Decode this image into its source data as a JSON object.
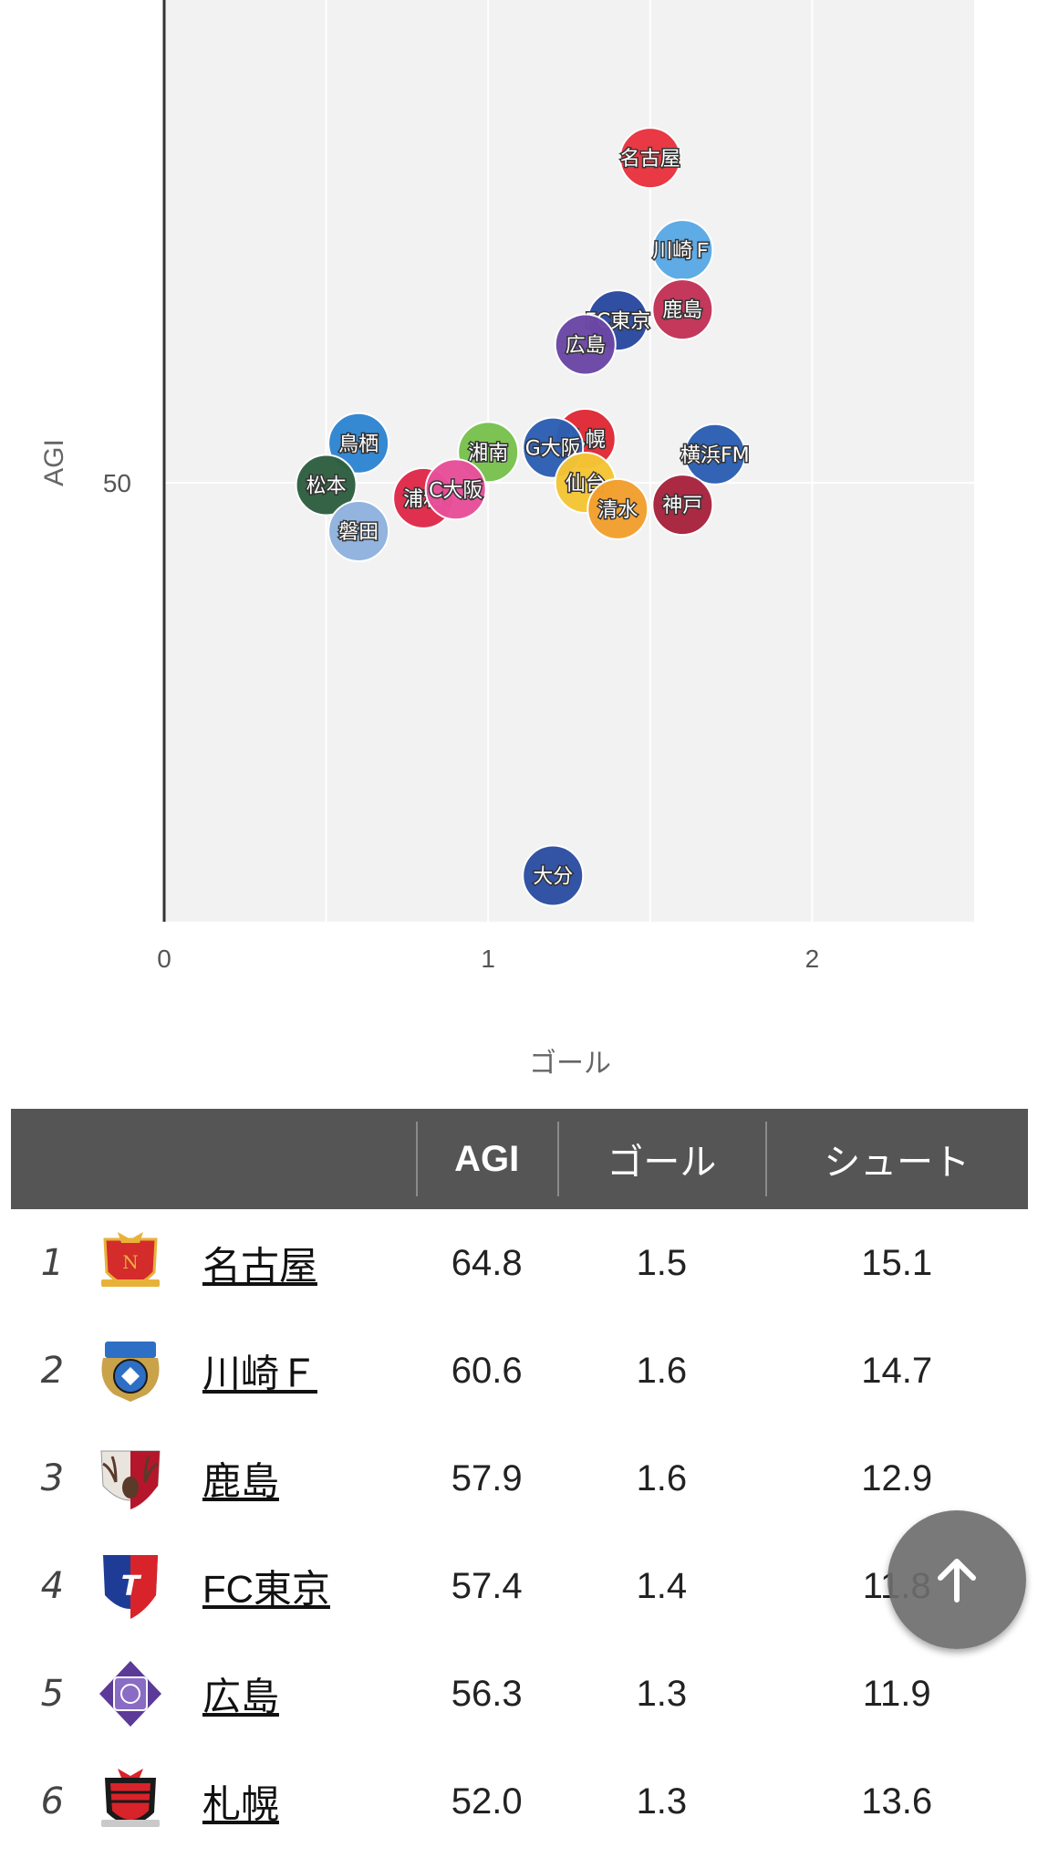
{
  "chart_data": {
    "type": "scatter",
    "xlabel": "ゴール",
    "ylabel": "AGI",
    "xlim": [
      0,
      2.5
    ],
    "ylim": [
      30,
      72
    ],
    "x_ticks": [
      "0",
      "1",
      "2"
    ],
    "x_tick_values": [
      0,
      1,
      2
    ],
    "y_ticks": [
      "50"
    ],
    "y_tick_values": [
      50
    ],
    "grid": true,
    "points": [
      {
        "label": "名古屋",
        "x": 1.5,
        "y": 64.8,
        "color": "#e8343f"
      },
      {
        "label": "川崎Ｆ",
        "x": 1.6,
        "y": 60.6,
        "color": "#5aa9e6"
      },
      {
        "label": "鹿島",
        "x": 1.6,
        "y": 57.9,
        "color": "#c23357"
      },
      {
        "label": "FC東京",
        "x": 1.4,
        "y": 57.4,
        "color": "#2a4aa0"
      },
      {
        "label": "広島",
        "x": 1.3,
        "y": 56.3,
        "color": "#6b47a6"
      },
      {
        "label": "札幌",
        "x": 1.3,
        "y": 52.0,
        "color": "#e02a36"
      },
      {
        "label": "横浜FM",
        "x": 1.7,
        "y": 51.3,
        "color": "#2c5fb2"
      },
      {
        "label": "鳥栖",
        "x": 0.6,
        "y": 51.8,
        "color": "#2f86d1"
      },
      {
        "label": "湘南",
        "x": 1.0,
        "y": 51.4,
        "color": "#79c24e"
      },
      {
        "label": "G大阪",
        "x": 1.2,
        "y": 51.6,
        "color": "#2c5fb2"
      },
      {
        "label": "仙台",
        "x": 1.3,
        "y": 50.0,
        "color": "#f5c534"
      },
      {
        "label": "松本",
        "x": 0.5,
        "y": 49.9,
        "color": "#2e6040"
      },
      {
        "label": "浦和",
        "x": 0.8,
        "y": 49.3,
        "color": "#e02a4a"
      },
      {
        "label": "C大阪",
        "x": 0.9,
        "y": 49.7,
        "color": "#e84f9a"
      },
      {
        "label": "清水",
        "x": 1.4,
        "y": 48.8,
        "color": "#f2a02e"
      },
      {
        "label": "神戸",
        "x": 1.6,
        "y": 49.0,
        "color": "#a8243e"
      },
      {
        "label": "磐田",
        "x": 0.6,
        "y": 47.8,
        "color": "#8fb3df"
      },
      {
        "label": "大分",
        "x": 1.2,
        "y": 32.1,
        "color": "#2d4ea3"
      }
    ]
  },
  "table": {
    "headers": [
      "",
      "AGI",
      "ゴール",
      "シュート"
    ],
    "rows": [
      {
        "rank": "1",
        "team": "名古屋",
        "agi": "64.8",
        "goal": "1.5",
        "shoot": "15.1"
      },
      {
        "rank": "2",
        "team": "川崎Ｆ",
        "agi": "60.6",
        "goal": "1.6",
        "shoot": "14.7"
      },
      {
        "rank": "3",
        "team": "鹿島",
        "agi": "57.9",
        "goal": "1.6",
        "shoot": "12.9"
      },
      {
        "rank": "4",
        "team": "FC東京",
        "agi": "57.4",
        "goal": "1.4",
        "shoot": "11.8"
      },
      {
        "rank": "5",
        "team": "広島",
        "agi": "56.3",
        "goal": "1.3",
        "shoot": "11.9"
      },
      {
        "rank": "6",
        "team": "札幌",
        "agi": "52.0",
        "goal": "1.3",
        "shoot": "13.6"
      }
    ]
  },
  "emblems": [
    {
      "icon": "nagoya-grampus-emblem-icon",
      "colors": [
        "#d42b2b",
        "#e8b23a"
      ]
    },
    {
      "icon": "kawasaki-frontale-emblem-icon",
      "colors": [
        "#2d6fc4",
        "#c9a24a"
      ]
    },
    {
      "icon": "kashima-antlers-emblem-icon",
      "colors": [
        "#b5162b",
        "#e9e4de"
      ]
    },
    {
      "icon": "fc-tokyo-emblem-icon",
      "colors": [
        "#1e3c96",
        "#d8232a"
      ]
    },
    {
      "icon": "sanfrecce-hiroshima-emblem-icon",
      "colors": [
        "#5b3a98",
        "#ffffff"
      ]
    },
    {
      "icon": "consadole-sapporo-emblem-icon",
      "colors": [
        "#d8232a",
        "#1a1a1a"
      ]
    }
  ],
  "scroll_top": {
    "icon": "arrow-up-icon"
  }
}
